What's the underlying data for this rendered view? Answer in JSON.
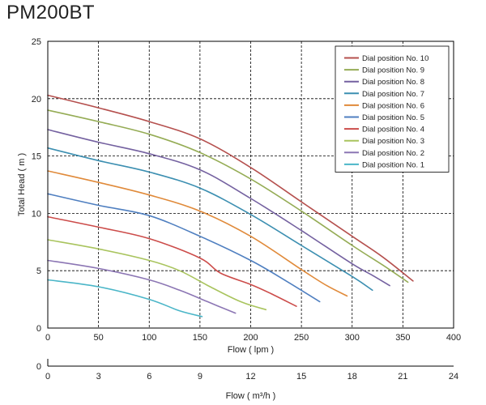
{
  "title": "PM200BT",
  "chart_data": {
    "type": "line",
    "title": "PM200BT",
    "xlabel": "Flow ( lpm )",
    "ylabel": "Total Head ( m )",
    "xlim": [
      0,
      400
    ],
    "ylim": [
      0,
      25
    ],
    "xticks": [
      0,
      50,
      100,
      150,
      200,
      250,
      300,
      350,
      400
    ],
    "yticks": [
      0,
      5,
      10,
      15,
      20,
      25
    ],
    "grid": true,
    "legend_position": "top-right",
    "secondary_axis": {
      "xlabel": "Flow ( m³/h )",
      "xlim": [
        0,
        24
      ],
      "xticks": [
        0,
        3,
        6,
        9,
        12,
        15,
        18,
        21,
        24
      ],
      "ylabel_tick": "0"
    },
    "series": [
      {
        "name": "Dial position No. 10",
        "color": "#b5504e",
        "x": [
          0,
          50,
          100,
          150,
          200,
          250,
          300,
          330,
          360
        ],
        "y": [
          20.3,
          19.2,
          18.0,
          16.5,
          14.0,
          11.0,
          8.0,
          6.2,
          4.1
        ]
      },
      {
        "name": "Dial position No. 9",
        "color": "#95ac55",
        "x": [
          0,
          50,
          100,
          150,
          200,
          250,
          300,
          330,
          355
        ],
        "y": [
          19.0,
          18.0,
          16.9,
          15.3,
          13.0,
          10.2,
          7.2,
          5.5,
          4.0
        ]
      },
      {
        "name": "Dial position No. 8",
        "color": "#7461a0",
        "x": [
          0,
          50,
          100,
          150,
          200,
          250,
          300,
          320,
          337
        ],
        "y": [
          17.3,
          16.2,
          15.2,
          13.8,
          11.3,
          8.5,
          5.6,
          4.6,
          3.7
        ]
      },
      {
        "name": "Dial position No. 7",
        "color": "#3c8fb1",
        "x": [
          0,
          50,
          100,
          150,
          200,
          250,
          300,
          320
        ],
        "y": [
          15.7,
          14.6,
          13.6,
          12.2,
          9.9,
          7.2,
          4.5,
          3.3
        ]
      },
      {
        "name": "Dial position No. 6",
        "color": "#e08a3a",
        "x": [
          0,
          50,
          100,
          150,
          200,
          250,
          275,
          295
        ],
        "y": [
          13.7,
          12.7,
          11.6,
          10.2,
          8.0,
          5.1,
          3.7,
          2.8
        ]
      },
      {
        "name": "Dial position No. 5",
        "color": "#4f7fc0",
        "x": [
          0,
          50,
          100,
          150,
          200,
          235,
          268
        ],
        "y": [
          11.7,
          10.7,
          9.8,
          8.0,
          5.9,
          4.1,
          2.3
        ]
      },
      {
        "name": "Dial position No. 4",
        "color": "#cc4c4a",
        "x": [
          0,
          50,
          100,
          150,
          170,
          200,
          220,
          245
        ],
        "y": [
          9.7,
          8.8,
          7.8,
          6.1,
          4.8,
          3.8,
          3.0,
          1.9
        ]
      },
      {
        "name": "Dial position No. 3",
        "color": "#a9c45e",
        "x": [
          0,
          50,
          100,
          130,
          160,
          190,
          215
        ],
        "y": [
          7.7,
          6.9,
          5.9,
          5.0,
          3.6,
          2.3,
          1.6
        ]
      },
      {
        "name": "Dial position No. 2",
        "color": "#8c76b4",
        "x": [
          0,
          50,
          100,
          130,
          160,
          185
        ],
        "y": [
          5.9,
          5.2,
          4.2,
          3.3,
          2.2,
          1.3
        ]
      },
      {
        "name": "Dial position No. 1",
        "color": "#4bb6c8",
        "x": [
          0,
          50,
          100,
          130,
          152
        ],
        "y": [
          4.2,
          3.6,
          2.5,
          1.5,
          1.0
        ]
      }
    ]
  }
}
